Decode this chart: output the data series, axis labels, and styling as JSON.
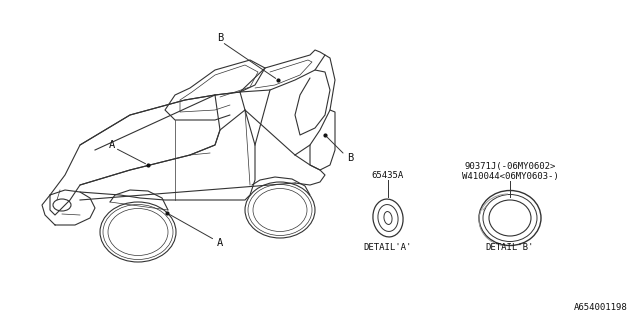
{
  "bg_color": "#ffffff",
  "line_color": "#333333",
  "dark_color": "#111111",
  "part_label_A": "65435A",
  "part_label_B1": "90371J(-06MY0602>",
  "part_label_B2": "W410044<06MY0603-)",
  "detail_A": "DETAIL'A'",
  "detail_B": "DETAIL'B'",
  "diagram_id": "A654001198",
  "label_A": "A",
  "label_B": "B",
  "font_size_small": 6.5,
  "font_size_label": 7.5,
  "font_size_id": 6.5
}
